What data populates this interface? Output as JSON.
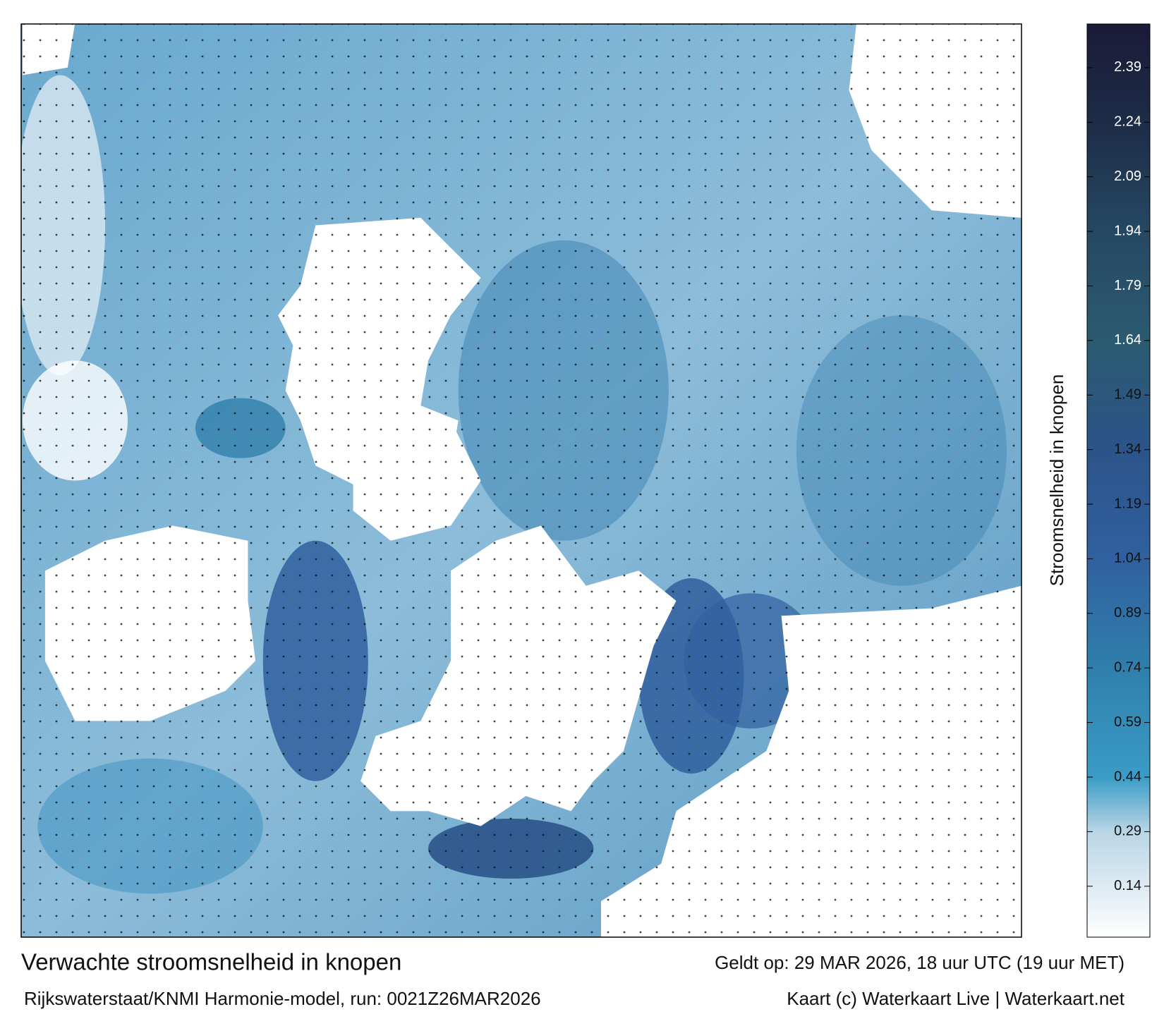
{
  "map": {
    "title": "Verwachte stroomsnelheid in knopen",
    "subtitle": "Rijkswaterstaat/KNMI Harmonie-model, run: 0021Z26MAR2026",
    "valid_time": "Geldt op: 29 MAR 2026, 18 uur UTC (19 uur MET)",
    "credit": "Kaart (c) Waterkaart Live | Waterkaart.net",
    "colorbar": {
      "label": "Stroomsnelheid in knopen",
      "lim": [
        0,
        2.51
      ],
      "ticks": [
        0.14,
        0.29,
        0.44,
        0.59,
        0.74,
        0.89,
        1.04,
        1.19,
        1.34,
        1.49,
        1.64,
        1.79,
        1.94,
        2.09,
        2.24,
        2.39
      ],
      "colorscale": [
        {
          "value": 0,
          "color": "#ffffff"
        },
        {
          "value": 0.29,
          "color": "#b9d5e5"
        },
        {
          "value": 0.44,
          "color": "#3a9cc6"
        },
        {
          "value": 0.74,
          "color": "#2f7fab"
        },
        {
          "value": 1.04,
          "color": "#3060a0"
        },
        {
          "value": 1.34,
          "color": "#2b5489"
        },
        {
          "value": 1.64,
          "color": "#2b5b70"
        },
        {
          "value": 1.94,
          "color": "#264862"
        },
        {
          "value": 2.24,
          "color": "#1d2c47"
        },
        {
          "value": 2.51,
          "color": "#1b1a38"
        }
      ]
    }
  }
}
